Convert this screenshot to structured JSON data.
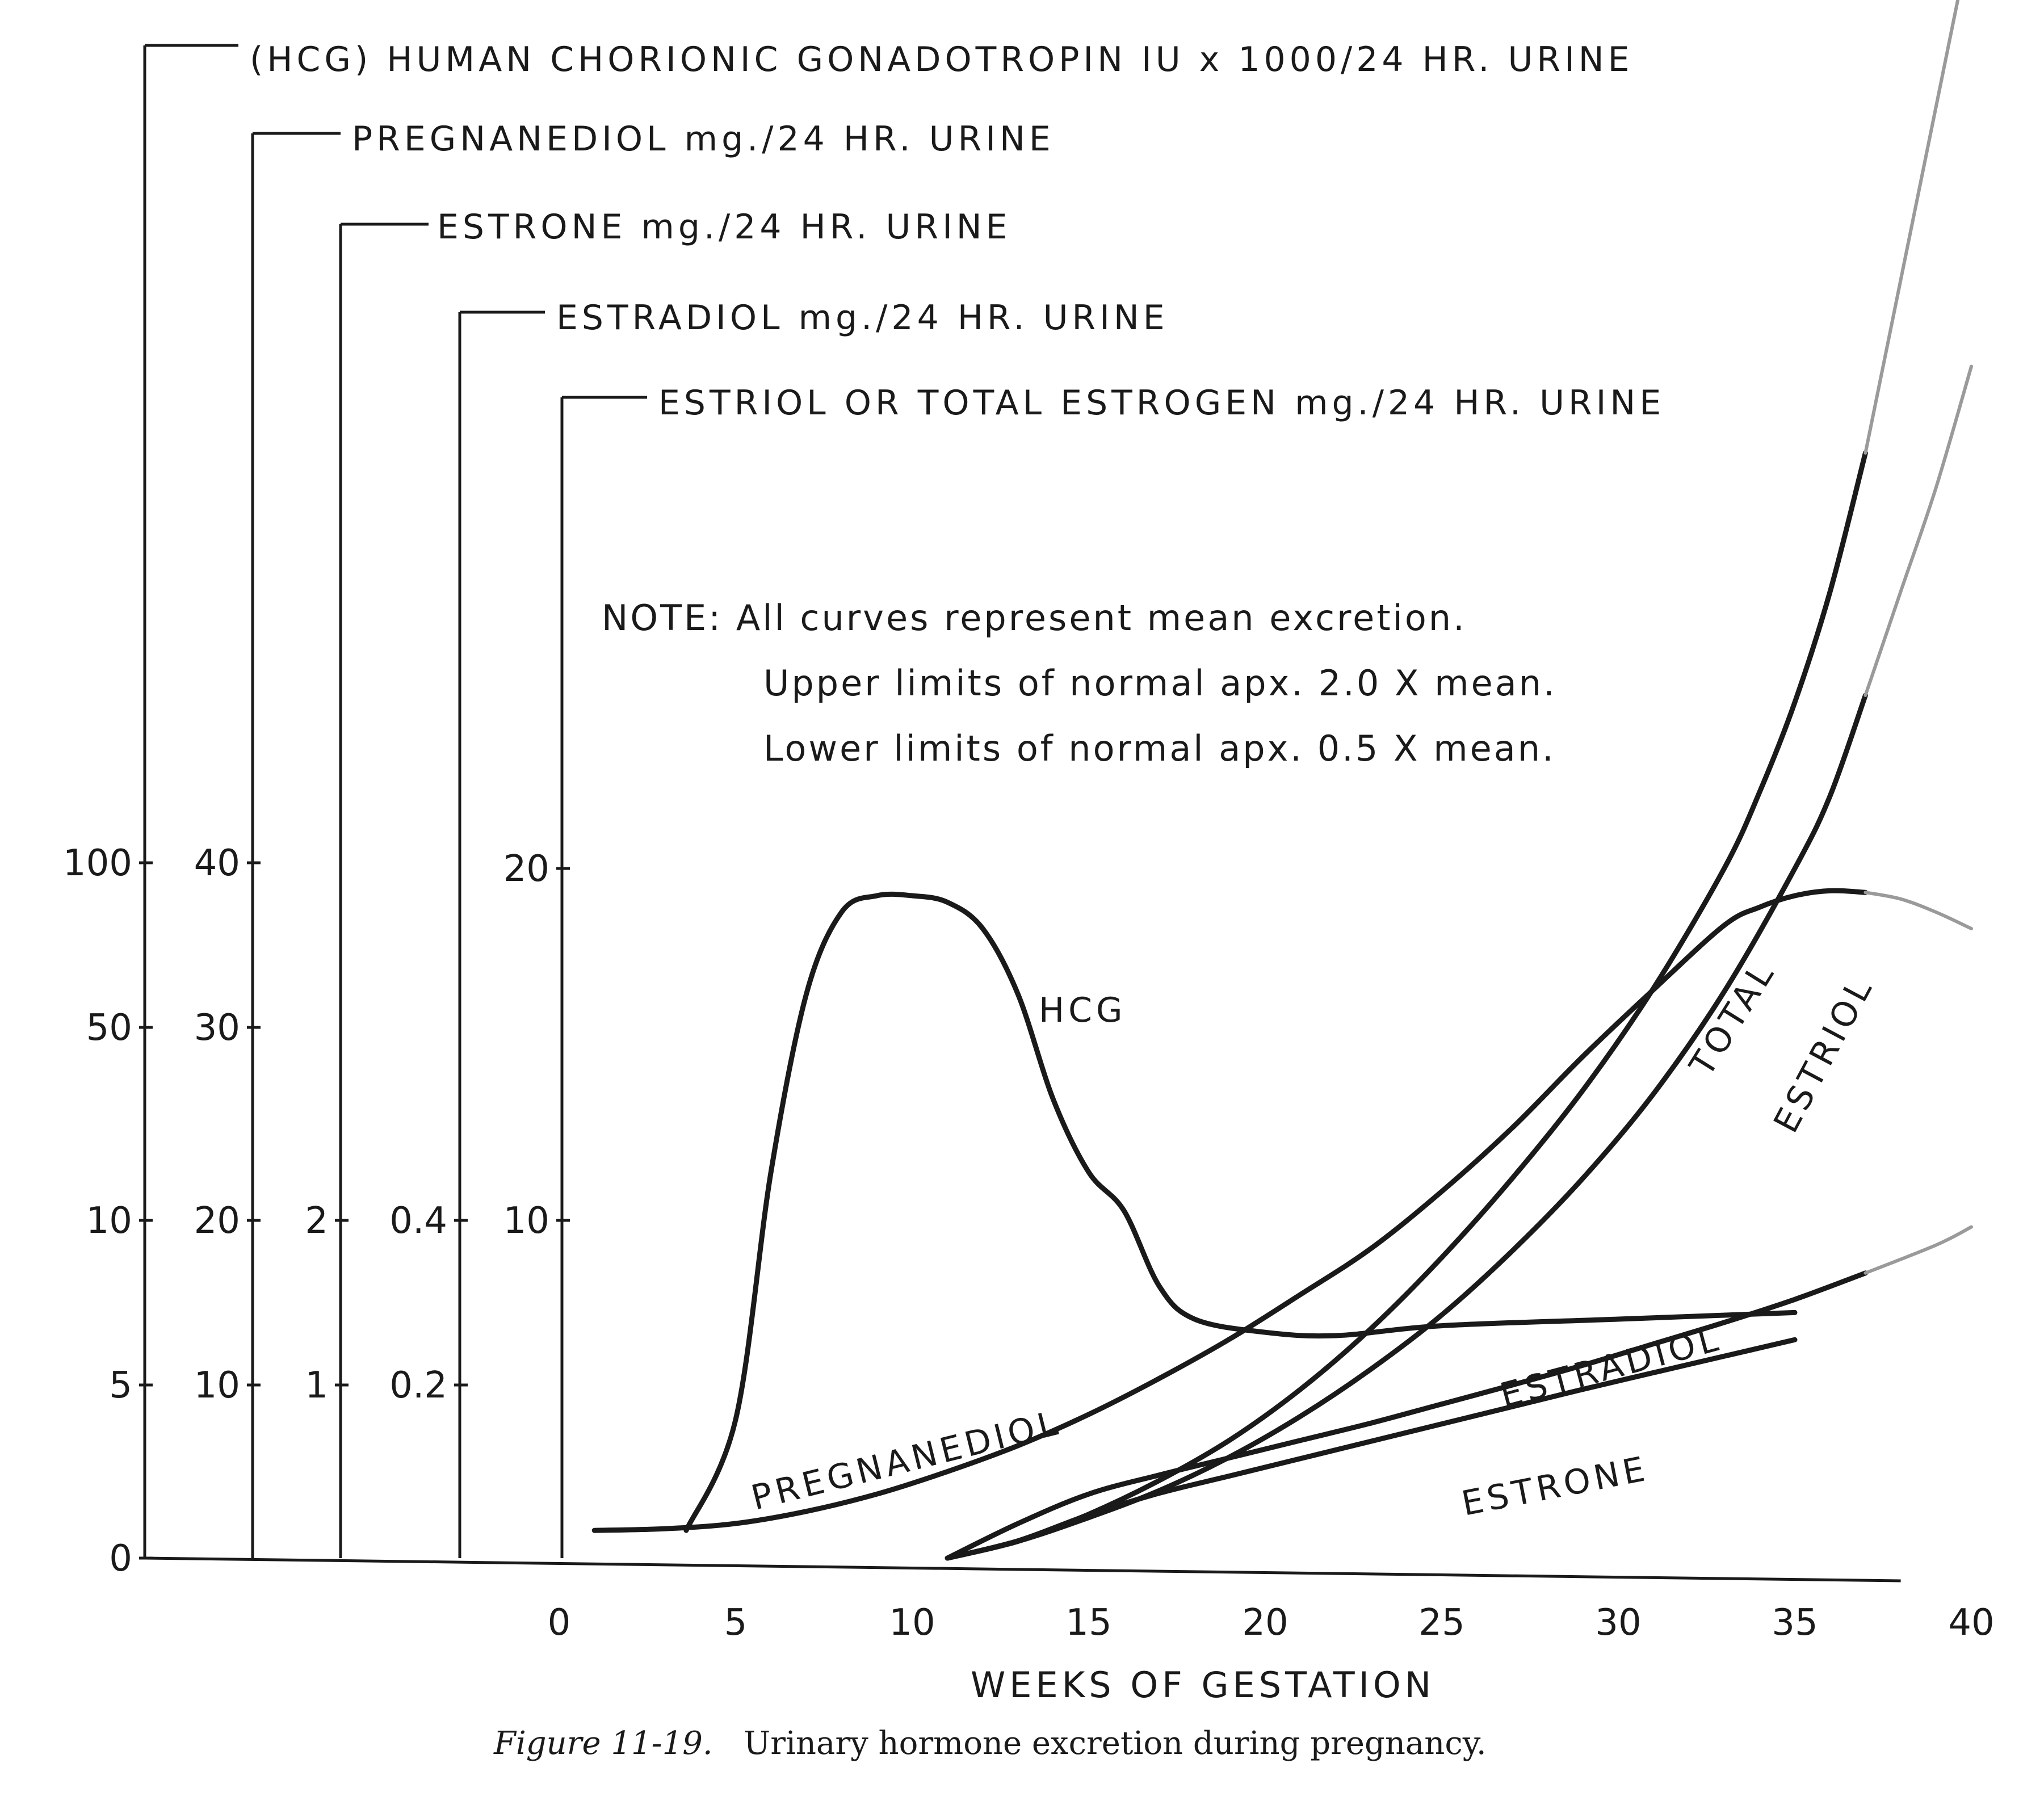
{
  "chart_data": {
    "type": "line",
    "caption_number": "Figure 11-19.",
    "caption_text": "Urinary hormone excretion during pregnancy.",
    "xlabel": "WEEKS OF GESTATION",
    "xlim": [
      0,
      40
    ],
    "x_ticks": [
      "0",
      "5",
      "10",
      "15",
      "20",
      "25",
      "30",
      "35",
      "40"
    ],
    "note": [
      "NOTE: All curves represent mean excretion.",
      "Upper limits of normal apx. 2.0 X mean.",
      "Lower limits of normal apx. 0.5 X mean."
    ],
    "axes": [
      {
        "key": "hcg",
        "label": "(HCG) HUMAN CHORIONIC GONADOTROPIN IU x 1000/24 HR. URINE",
        "ticks": [
          "0",
          "5",
          "10",
          "50",
          "100"
        ]
      },
      {
        "key": "preg",
        "label": "PREGNANEDIOL mg./24 HR. URINE",
        "ticks": [
          "10",
          "20",
          "30",
          "40"
        ]
      },
      {
        "key": "estrone",
        "label": "ESTRONE mg./24 HR. URINE",
        "ticks": [
          "1",
          "2"
        ]
      },
      {
        "key": "estradiol",
        "label": "ESTRADIOL mg./24 HR. URINE",
        "ticks": [
          "0.2",
          "0.4"
        ]
      },
      {
        "key": "estriol",
        "label": "ESTRIOL OR TOTAL ESTROGEN mg./24 HR. URINE",
        "ticks": [
          "10",
          "20"
        ]
      }
    ],
    "series": [
      {
        "name": "HCG",
        "axis": "hcg",
        "x": [
          3.6,
          5,
          6,
          7,
          8,
          9,
          10,
          11,
          12,
          13,
          14,
          15,
          16,
          17,
          18,
          20,
          22,
          25,
          30,
          35,
          40
        ],
        "y": [
          0.8,
          4,
          20,
          60,
          85,
          90,
          90,
          88,
          80,
          60,
          35,
          20,
          12,
          8,
          7,
          6.6,
          6.5,
          6.8,
          7.0,
          7.2,
          7.6
        ]
      },
      {
        "name": "PREGNANEDIOL",
        "axis": "preg",
        "x": [
          1,
          3,
          5,
          7,
          9,
          11,
          13,
          15,
          17,
          19,
          21,
          23,
          25,
          27,
          29,
          31,
          33,
          34,
          35,
          36,
          37,
          38,
          39,
          40
        ],
        "y": [
          1.6,
          1.7,
          2.0,
          2.7,
          3.7,
          5.0,
          6.5,
          8.3,
          10.4,
          12.8,
          15.5,
          18.3,
          21.5,
          24.8,
          28.5,
          32.3,
          36.2,
          37.3,
          38.0,
          38.3,
          38.2,
          37.8,
          37.0,
          36.0
        ]
      },
      {
        "name": "TOTAL ESTROGEN",
        "axis": "estriol",
        "x": [
          11,
          13,
          15,
          17,
          19,
          21,
          23,
          25,
          27,
          29,
          31,
          33,
          34,
          35,
          36,
          37,
          38,
          39,
          40
        ],
        "y": [
          0,
          0.5,
          1.3,
          2.3,
          3.5,
          5.0,
          6.8,
          8.9,
          11.2,
          13.7,
          16.6,
          20.0,
          22.2,
          24.8,
          28,
          32,
          37,
          42,
          47
        ]
      },
      {
        "name": "ESTRIOL",
        "axis": "estriol",
        "x": [
          11,
          13,
          15,
          17,
          19,
          21,
          23,
          25,
          27,
          29,
          31,
          33,
          35,
          36,
          37,
          38,
          39,
          40
        ],
        "y": [
          0,
          0.5,
          1.2,
          2.0,
          3.0,
          4.2,
          5.6,
          7.2,
          9.1,
          11.2,
          13.6,
          16.5,
          20.0,
          22.1,
          25.0,
          28,
          31,
          34.5
        ]
      },
      {
        "name": "ESTRADIOL",
        "axis": "estradiol",
        "x": [
          11,
          13,
          15,
          17,
          19,
          21,
          23,
          25,
          27,
          29,
          31,
          33,
          35
        ],
        "y": [
          0,
          0.02,
          0.05,
          0.075,
          0.095,
          0.115,
          0.135,
          0.155,
          0.175,
          0.195,
          0.215,
          0.235,
          0.255
        ]
      },
      {
        "name": "ESTRONE",
        "axis": "estrone",
        "x": [
          11,
          13,
          15,
          17,
          19,
          21,
          23,
          25,
          27,
          29,
          31,
          33,
          35,
          37,
          39,
          40
        ],
        "y": [
          0,
          0.2,
          0.37,
          0.48,
          0.58,
          0.68,
          0.78,
          0.89,
          1.0,
          1.12,
          1.25,
          1.38,
          1.52,
          1.68,
          1.85,
          1.96
        ]
      }
    ],
    "curve_labels": {
      "hcg": "HCG",
      "preg": "PREGNANEDIOL",
      "total": "TOTAL",
      "estriol": "ESTRIOL",
      "estradiol": "ESTRADIOL",
      "estrone": "ESTRONE"
    }
  }
}
